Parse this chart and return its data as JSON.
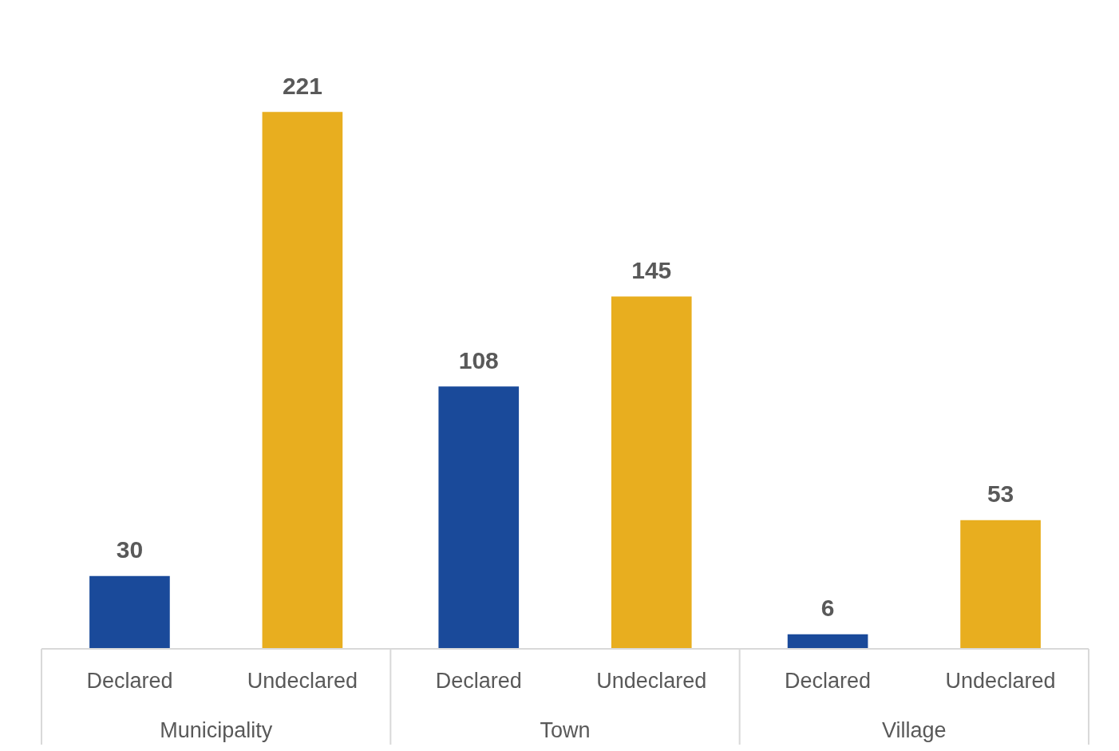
{
  "chart_data": {
    "type": "bar",
    "categories": [
      "Municipality",
      "Town",
      "Village"
    ],
    "series": [
      {
        "name": "Declared",
        "color": "#1a4a9a",
        "values": [
          30,
          108,
          6
        ]
      },
      {
        "name": "Undeclared",
        "color": "#e8ae1f",
        "values": [
          221,
          145,
          53
        ]
      }
    ],
    "data_labels": true
  }
}
